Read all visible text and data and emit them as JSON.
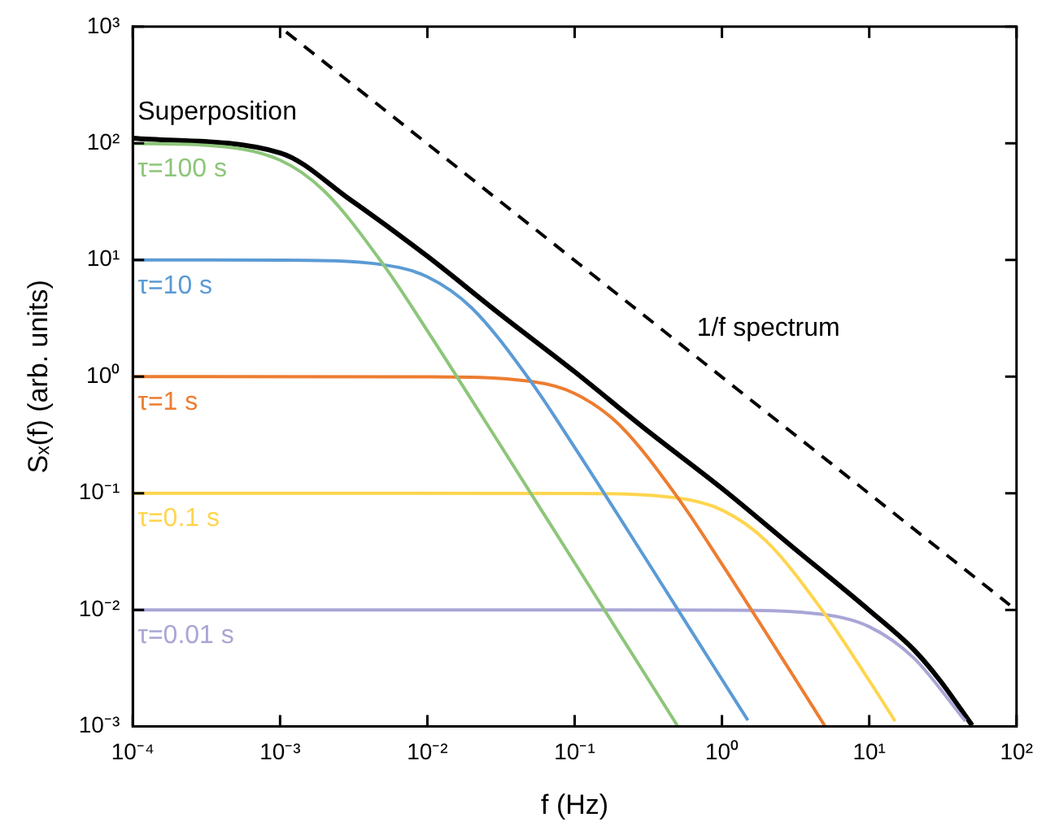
{
  "chart_data": {
    "type": "line",
    "xlabel": "f (Hz)",
    "ylabel": "Sₓ(f) (arb. units)",
    "log": "xy",
    "grid": false,
    "legend": false,
    "marker": "none",
    "xlim": [
      0.0001,
      100
    ],
    "ylim": [
      0.001,
      1000
    ],
    "xticks": [
      {
        "value": 0.0001,
        "label": "10⁻⁴"
      },
      {
        "value": 0.001,
        "label": "10⁻³"
      },
      {
        "value": 0.01,
        "label": "10⁻²"
      },
      {
        "value": 0.1,
        "label": "10⁻¹"
      },
      {
        "value": 1,
        "label": "10⁰"
      },
      {
        "value": 10,
        "label": "10¹"
      },
      {
        "value": 100,
        "label": "10²"
      }
    ],
    "yticks": [
      {
        "value": 0.001,
        "label": "10⁻³"
      },
      {
        "value": 0.01,
        "label": "10⁻²"
      },
      {
        "value": 0.1,
        "label": "10⁻¹"
      },
      {
        "value": 1,
        "label": "10⁰"
      },
      {
        "value": 10,
        "label": "10¹"
      },
      {
        "value": 100,
        "label": "10²"
      },
      {
        "value": 1000,
        "label": "10³"
      }
    ],
    "series": [
      {
        "name": "τ=100 s",
        "color": "#8dc67a",
        "x": [
          0.0001,
          0.0003,
          0.001,
          0.002,
          0.005,
          0.01,
          0.03,
          0.1,
          0.3,
          0.5
        ],
        "values": [
          99.6,
          96.6,
          71.7,
          38.8,
          9.2,
          2.47,
          0.281,
          0.0253,
          0.00281,
          0.00101
        ]
      },
      {
        "name": "τ=10 s",
        "color": "#5b9bd5",
        "x": [
          0.0001,
          0.001,
          0.005,
          0.01,
          0.02,
          0.05,
          0.1,
          0.3,
          1,
          1.5
        ],
        "values": [
          10,
          9.96,
          9.1,
          7.17,
          3.88,
          0.92,
          0.247,
          0.0281,
          0.00253,
          0.00113
        ]
      },
      {
        "name": "τ=1 s",
        "color": "#ed7d31",
        "x": [
          0.0001,
          0.01,
          0.05,
          0.1,
          0.2,
          0.5,
          1,
          3,
          5
        ],
        "values": [
          1,
          0.996,
          0.91,
          0.717,
          0.388,
          0.092,
          0.0247,
          0.00281,
          0.00101
        ]
      },
      {
        "name": "τ=0.1 s",
        "color": "#ffd54f",
        "x": [
          0.0001,
          0.1,
          0.5,
          1,
          2,
          5,
          10,
          15
        ],
        "values": [
          0.1,
          0.0996,
          0.091,
          0.0717,
          0.0388,
          0.0092,
          0.00247,
          0.00111
        ]
      },
      {
        "name": "τ=0.01 s",
        "color": "#a9a6d6",
        "x": [
          0.0001,
          1,
          5,
          10,
          20,
          45
        ],
        "values": [
          0.01,
          0.00996,
          0.0091,
          0.00717,
          0.00388,
          0.00111
        ]
      },
      {
        "name": "Superposition",
        "color": "#000000",
        "x": [
          0.0001,
          0.001,
          0.003,
          0.01,
          0.03,
          0.1,
          0.3,
          1,
          3,
          10,
          20,
          30,
          50
        ],
        "values": [
          110.7,
          82.8,
          32.8,
          10.75,
          3.56,
          1.1,
          0.357,
          0.11,
          0.0348,
          0.0099,
          0.00457,
          0.00251,
          0.00102
        ]
      },
      {
        "name": "1/f spectrum",
        "color": "#000000",
        "line_style": "dashed",
        "x": [
          0.0011,
          90
        ],
        "values": [
          900,
          0.011
        ]
      }
    ]
  }
}
